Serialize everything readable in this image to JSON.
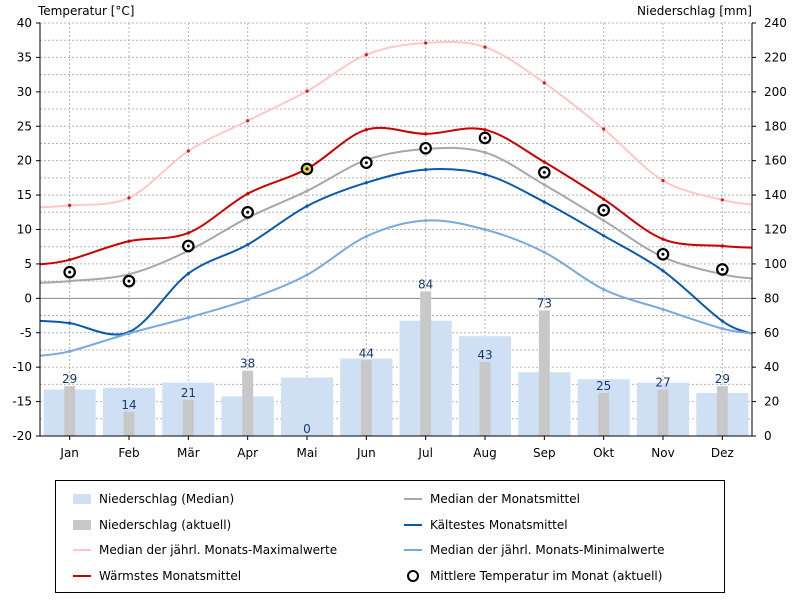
{
  "chart_data": {
    "type": "line",
    "y_left_label": "Temperatur [°C]",
    "y_right_label": "Niederschlag [mm]",
    "y_left_range": [
      -20,
      40
    ],
    "y_right_range": [
      0,
      240
    ],
    "y_left_ticks": [
      -20,
      -15,
      -10,
      -5,
      0,
      5,
      10,
      15,
      20,
      25,
      30,
      35,
      40
    ],
    "y_right_ticks": [
      0,
      20,
      40,
      60,
      80,
      100,
      120,
      140,
      160,
      180,
      200,
      220,
      240
    ],
    "categories": [
      "Jan",
      "Feb",
      "Mär",
      "Apr",
      "Mai",
      "Jun",
      "Jul",
      "Aug",
      "Sep",
      "Okt",
      "Nov",
      "Dez"
    ],
    "precip_median": [
      27,
      28,
      31,
      23,
      34,
      45,
      67,
      58,
      37,
      33,
      31,
      25
    ],
    "precip_actual": [
      29,
      14,
      21,
      38,
      0,
      44,
      84,
      43,
      73,
      25,
      27,
      29
    ],
    "temp_actual_mean": [
      3.8,
      2.5,
      7.6,
      12.5,
      18.8,
      19.7,
      21.8,
      23.3,
      18.3,
      12.8,
      6.4,
      4.2
    ],
    "series": [
      {
        "name": "Median der jährl. Monats-Maximalwerte",
        "values": [
          13.5,
          14.6,
          21.4,
          25.8,
          30.1,
          35.4,
          37.1,
          36.5,
          31.3,
          24.6,
          17.1,
          14.3
        ]
      },
      {
        "name": "Wärmstes Monatsmittel",
        "values": [
          5.6,
          8.3,
          9.5,
          15.2,
          18.8,
          24.5,
          23.9,
          24.5,
          19.8,
          14.4,
          8.6,
          7.6
        ]
      },
      {
        "name": "Median der Monatsmittel",
        "values": [
          2.5,
          3.5,
          6.9,
          11.7,
          15.6,
          20.1,
          21.7,
          21.2,
          16.5,
          11.3,
          6.0,
          3.5
        ]
      },
      {
        "name": "Kältestes Monatsmittel",
        "values": [
          -3.6,
          -4.9,
          3.6,
          7.8,
          13.4,
          16.8,
          18.7,
          18.0,
          14.0,
          9.1,
          4.0,
          -3.3
        ]
      },
      {
        "name": "Median der jährl. Monats-Minimalwerte",
        "values": [
          -7.7,
          -5.1,
          -2.8,
          -0.2,
          3.4,
          9.0,
          11.3,
          10.0,
          6.7,
          1.3,
          -1.6,
          -4.4
        ]
      }
    ],
    "highlight_month_index": 4,
    "colors": {
      "precip_median": "#cfe0f5",
      "precip_actual": "#c8c8c8",
      "max_median": "#ffc8c8",
      "warmest": "#c80000",
      "mean_median": "#a8a8a8",
      "coldest": "#0a5aaa",
      "min_median": "#78aadc",
      "highlight": "#d8d040"
    }
  },
  "legend": [
    {
      "label": "Niederschlag (Median)",
      "kind": "box",
      "color": "#cfe0f5"
    },
    {
      "label": "Median der Monatsmittel",
      "kind": "line",
      "color": "#a8a8a8"
    },
    {
      "label": "Niederschlag (aktuell)",
      "kind": "box",
      "color": "#c8c8c8"
    },
    {
      "label": "Kältestes Monatsmittel",
      "kind": "line",
      "color": "#0a5aaa"
    },
    {
      "label": "Median der jährl. Monats-Maximalwerte",
      "kind": "line",
      "color": "#ffc8c8"
    },
    {
      "label": "Median der jährl. Monats-Minimalwerte",
      "kind": "line",
      "color": "#78aadc"
    },
    {
      "label": "Wärmstes Monatsmittel",
      "kind": "line",
      "color": "#c80000"
    },
    {
      "label": "Mittlere Temperatur im Monat (aktuell)",
      "kind": "circle",
      "color": "#000000"
    }
  ]
}
